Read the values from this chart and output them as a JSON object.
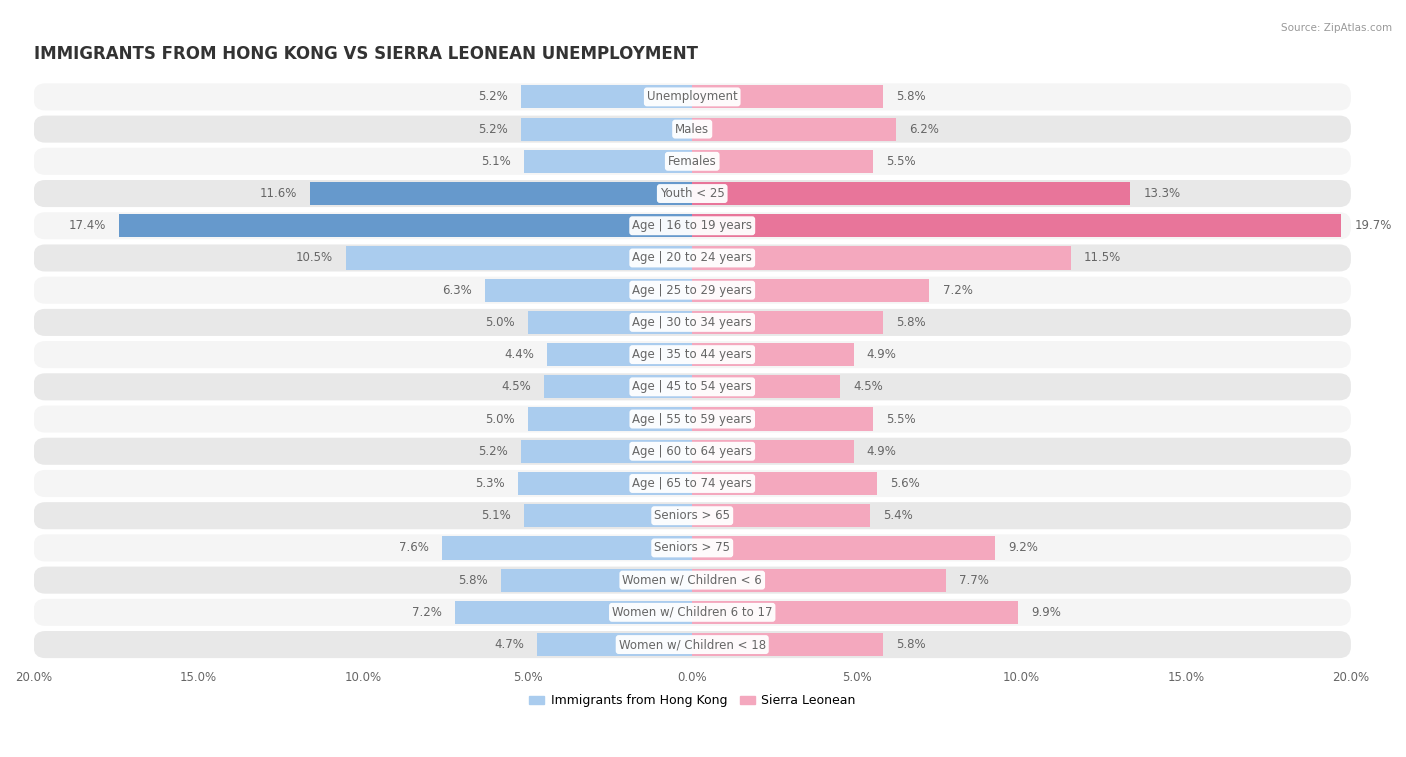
{
  "title": "IMMIGRANTS FROM HONG KONG VS SIERRA LEONEAN UNEMPLOYMENT",
  "source": "Source: ZipAtlas.com",
  "categories": [
    "Unemployment",
    "Males",
    "Females",
    "Youth < 25",
    "Age | 16 to 19 years",
    "Age | 20 to 24 years",
    "Age | 25 to 29 years",
    "Age | 30 to 34 years",
    "Age | 35 to 44 years",
    "Age | 45 to 54 years",
    "Age | 55 to 59 years",
    "Age | 60 to 64 years",
    "Age | 65 to 74 years",
    "Seniors > 65",
    "Seniors > 75",
    "Women w/ Children < 6",
    "Women w/ Children 6 to 17",
    "Women w/ Children < 18"
  ],
  "left_values": [
    5.2,
    5.2,
    5.1,
    11.6,
    17.4,
    10.5,
    6.3,
    5.0,
    4.4,
    4.5,
    5.0,
    5.2,
    5.3,
    5.1,
    7.6,
    5.8,
    7.2,
    4.7
  ],
  "right_values": [
    5.8,
    6.2,
    5.5,
    13.3,
    19.7,
    11.5,
    7.2,
    5.8,
    4.9,
    4.5,
    5.5,
    4.9,
    5.6,
    5.4,
    9.2,
    7.7,
    9.9,
    5.8
  ],
  "left_color": "#aaccee",
  "right_color": "#f4a8be",
  "label_color": "#666666",
  "value_color": "#666666",
  "highlight_rows": [
    3,
    4
  ],
  "highlight_left_color": "#6699cc",
  "highlight_right_color": "#e8759a",
  "axis_max": 20.0,
  "background_color": "#ffffff",
  "row_bg_even": "#f5f5f5",
  "row_bg_odd": "#e8e8e8",
  "legend_label_left": "Immigrants from Hong Kong",
  "legend_label_right": "Sierra Leonean",
  "title_fontsize": 12,
  "label_fontsize": 8.5,
  "value_fontsize": 8.5,
  "tick_fontsize": 8.5
}
